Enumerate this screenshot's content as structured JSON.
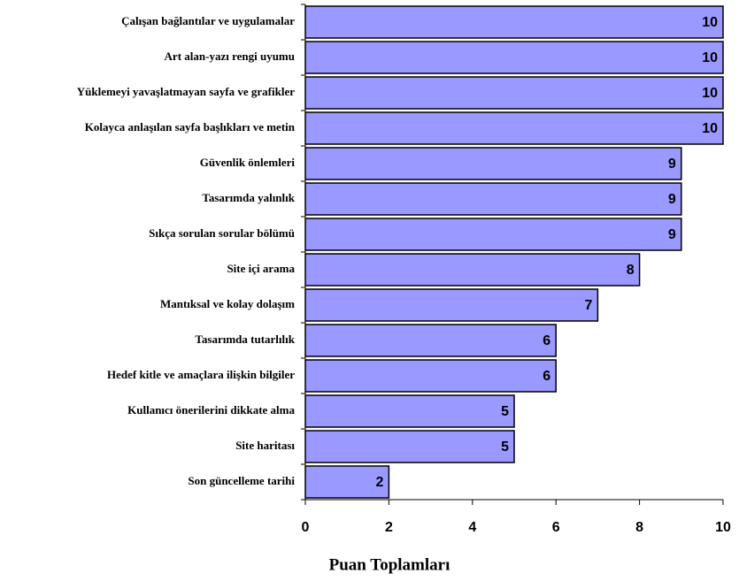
{
  "chart_data": {
    "type": "barh",
    "x_label": "Puan Toplamları",
    "categories": [
      "Çalışan bağlantılar ve uygulamalar",
      "Art alan-yazı rengi uyumu",
      "Yüklemeyi yavaşlatmayan sayfa ve grafikler",
      "Kolayca anlaşılan sayfa başlıkları ve metin",
      "Güvenlik önlemleri",
      "Tasarımda yalınlık",
      "Sıkça sorulan sorular bölümü",
      "Site içi arama",
      "Mantıksal ve kolay dolaşım",
      "Tasarımda tutarlılık",
      "Hedef kitle ve amaçlara ilişkin bilgiler",
      "Kullanıcı önerilerini dikkate alma",
      "Site haritası",
      "Son güncelleme tarihi"
    ],
    "values": [
      10,
      10,
      10,
      10,
      9,
      9,
      9,
      8,
      7,
      6,
      6,
      5,
      5,
      2
    ],
    "color": "#9999ff",
    "xlim": [
      0,
      10
    ],
    "xticks": [
      0,
      2,
      4,
      6,
      8,
      10
    ]
  }
}
